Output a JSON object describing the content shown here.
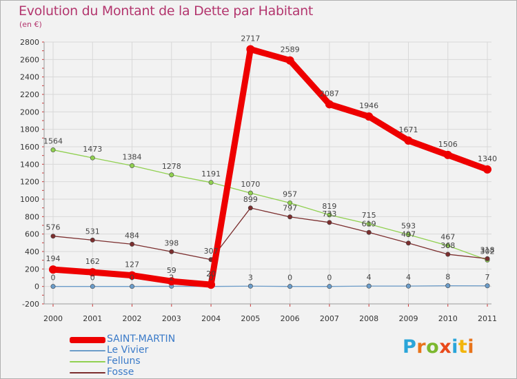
{
  "header": {
    "title": "Evolution du Montant de la Dette par Habitant",
    "unit": "(en €)"
  },
  "logo": {
    "text": "Proxiti",
    "letters": [
      "P",
      "r",
      "o",
      "x",
      "i",
      "t",
      "i"
    ]
  },
  "chart_data": {
    "type": "line",
    "title": "Evolution du Montant de la Dette par Habitant",
    "subtitle": "(en €)",
    "xlabel": "",
    "ylabel": "",
    "categories": [
      "2000",
      "2001",
      "2002",
      "2003",
      "2004",
      "2005",
      "2006",
      "2007",
      "2008",
      "2009",
      "2010",
      "2011"
    ],
    "ylim": [
      -200,
      2800
    ],
    "yticks": [
      -200,
      0,
      200,
      400,
      600,
      800,
      1000,
      1200,
      1400,
      1600,
      1800,
      2000,
      2200,
      2400,
      2600,
      2800
    ],
    "grid": true,
    "legend_position": "bottom-left",
    "series": [
      {
        "name": "SAINT-MARTIN",
        "color": "#ee0000",
        "values": [
          194,
          162,
          127,
          59,
          20,
          2717,
          2589,
          2087,
          1946,
          1671,
          1506,
          1340
        ],
        "labels": [
          "194",
          "162",
          "127",
          "59",
          "20",
          "2717",
          "2589",
          "2087",
          "1946",
          "1671",
          "1506",
          "1340"
        ]
      },
      {
        "name": "Le Vivier",
        "color": "#6b9cc9",
        "values": [
          0,
          0,
          0,
          2,
          0,
          3,
          0,
          0,
          4,
          4,
          8,
          7
        ],
        "labels": [
          "0",
          "0",
          "0",
          "2",
          "0",
          "3",
          "0",
          "0",
          "4",
          "4",
          "8",
          "7"
        ]
      },
      {
        "name": "Felluns",
        "color": "#90d050",
        "values": [
          1564,
          1473,
          1384,
          1278,
          1191,
          1070,
          957,
          819,
          715,
          593,
          467,
          302
        ],
        "labels": [
          "1564",
          "1473",
          "1384",
          "1278",
          "1191",
          "1070",
          "957",
          "819",
          "715",
          "593",
          "467",
          "302"
        ]
      },
      {
        "name": "Fosse",
        "color": "#7b2e2e",
        "values": [
          576,
          531,
          484,
          398,
          307,
          899,
          797,
          733,
          619,
          497,
          368,
          318
        ],
        "labels": [
          "576",
          "531",
          "484",
          "398",
          "307",
          "899",
          "797",
          "733",
          "619",
          "497",
          "368",
          "318"
        ]
      }
    ]
  }
}
